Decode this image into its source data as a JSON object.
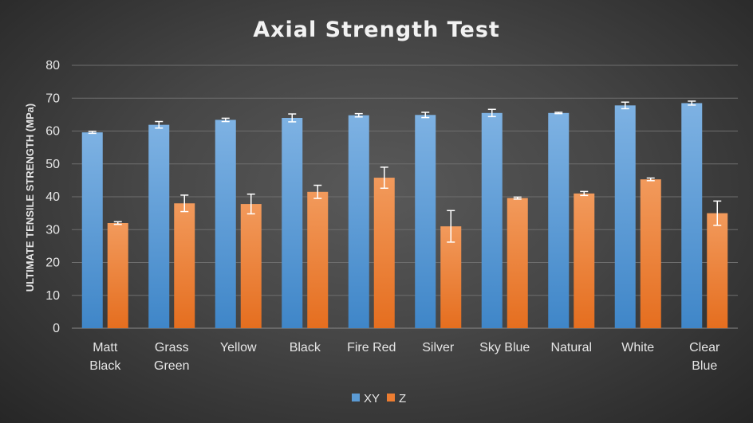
{
  "chart_data": {
    "type": "bar",
    "title": "Axial Strength Test",
    "xlabel": "",
    "ylabel": "ULTIMATE TENSILE STRENGTH (MPa)",
    "ylim": [
      0,
      80
    ],
    "yticks": [
      0,
      10,
      20,
      30,
      40,
      50,
      60,
      70,
      80
    ],
    "grid": true,
    "legend_position": "bottom",
    "categories": [
      "Matt Black",
      "Grass Green",
      "Yellow",
      "Black",
      "Fire Red",
      "Silver",
      "Sky Blue",
      "Natural",
      "White",
      "Clear Blue"
    ],
    "series": [
      {
        "name": "XY",
        "color": "#5b9bd5",
        "values": [
          59.6,
          61.9,
          63.4,
          64.0,
          64.8,
          64.9,
          65.5,
          65.5,
          67.8,
          68.5
        ],
        "errors": [
          0.3,
          1.0,
          0.5,
          1.2,
          0.5,
          0.8,
          1.1,
          0.2,
          1.0,
          0.6
        ]
      },
      {
        "name": "Z",
        "color": "#ed7d31",
        "values": [
          32.0,
          38.0,
          37.8,
          41.5,
          45.8,
          31.0,
          39.6,
          41.0,
          45.3,
          35.0
        ],
        "errors": [
          0.4,
          2.5,
          3.0,
          2.0,
          3.2,
          4.8,
          0.3,
          0.6,
          0.4,
          3.7
        ]
      }
    ]
  }
}
